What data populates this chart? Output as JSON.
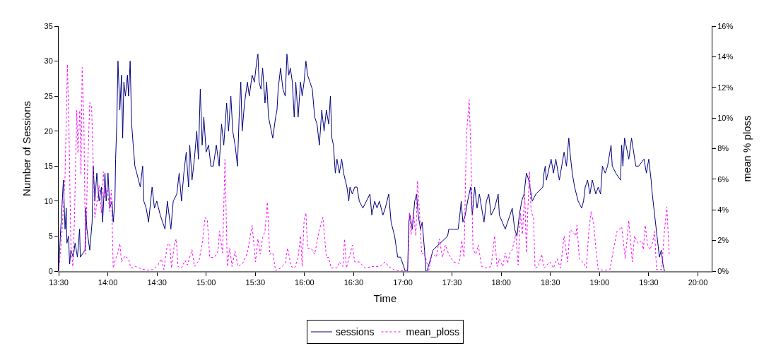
{
  "chart_data": {
    "type": "line",
    "xlabel": "Time",
    "ylabel": "Number of Sessions",
    "y2label": "mean % ploss",
    "xlim": [
      13.5,
      20.14
    ],
    "xticks": [
      {
        "value": 13.5,
        "label": "13:30"
      },
      {
        "value": 14,
        "label": "14:00"
      },
      {
        "value": 14.5,
        "label": "14:30"
      },
      {
        "value": 15,
        "label": "15:00"
      },
      {
        "value": 15.5,
        "label": "15:30"
      },
      {
        "value": 16,
        "label": "16:00"
      },
      {
        "value": 16.5,
        "label": "16:30"
      },
      {
        "value": 17,
        "label": "17:00"
      },
      {
        "value": 17.5,
        "label": "17:30"
      },
      {
        "value": 18,
        "label": "18:00"
      },
      {
        "value": 18.5,
        "label": "18:30"
      },
      {
        "value": 19,
        "label": "19:00"
      },
      {
        "value": 19.5,
        "label": "19:30"
      },
      {
        "value": 20,
        "label": "20:00"
      }
    ],
    "ylim": [
      0,
      35
    ],
    "yticks": [
      0,
      5,
      10,
      15,
      20,
      25,
      30,
      35
    ],
    "y2lim": [
      0,
      16
    ],
    "y2ticks": [
      {
        "value": 0,
        "label": "0%"
      },
      {
        "value": 2,
        "label": "2%"
      },
      {
        "value": 4,
        "label": "4%"
      },
      {
        "value": 6,
        "label": "6%"
      },
      {
        "value": 8,
        "label": "8%"
      },
      {
        "value": 10,
        "label": "10%"
      },
      {
        "value": 12,
        "label": "12%"
      },
      {
        "value": 14,
        "label": "14%"
      },
      {
        "value": 16,
        "label": "16%"
      }
    ],
    "grid": false,
    "legend": "bottom",
    "marker": "none",
    "series": [
      {
        "name": "sessions",
        "color": "#000080",
        "line_style": "solid",
        "x": [
          13.5,
          13.517,
          13.529,
          13.548,
          13.565,
          13.577,
          13.584,
          13.6,
          13.612,
          13.624,
          13.648,
          13.667,
          13.691,
          13.713,
          13.72,
          13.768,
          13.775,
          13.787,
          13.816,
          13.84,
          13.852,
          13.868,
          13.888,
          13.911,
          13.935,
          13.947,
          13.971,
          13.983,
          14.002,
          14.019,
          14.043,
          14.055,
          14.072,
          14.079,
          14.091,
          14.103,
          14.122,
          14.139,
          14.151,
          14.163,
          14.179,
          14.199,
          14.211,
          14.227,
          14.242,
          14.258,
          14.275,
          14.294,
          14.33,
          14.354,
          14.366,
          14.39,
          14.414,
          14.45,
          14.474,
          14.498,
          14.533,
          14.581,
          14.605,
          14.641,
          14.665,
          14.701,
          14.725,
          14.749,
          14.773,
          14.797,
          14.821,
          14.833,
          14.856,
          14.88,
          14.904,
          14.921,
          14.94,
          14.959,
          14.976,
          15.0,
          15.024,
          15.048,
          15.072,
          15.103,
          15.132,
          15.156,
          15.179,
          15.208,
          15.227,
          15.251,
          15.27,
          15.294,
          15.318,
          15.335,
          15.352,
          15.366,
          15.39,
          15.419,
          15.438,
          15.467,
          15.49,
          15.514,
          15.526,
          15.538,
          15.557,
          15.574,
          15.598,
          15.615,
          15.634,
          15.677,
          15.706,
          15.72,
          15.732,
          15.756,
          15.78,
          15.804,
          15.821,
          15.84,
          15.856,
          15.876,
          15.895,
          15.911,
          15.935,
          15.959,
          15.976,
          15.995,
          16.014,
          16.031,
          16.055,
          16.079,
          16.103,
          16.127,
          16.151,
          16.175,
          16.199,
          16.222,
          16.246,
          16.263,
          16.278,
          16.294,
          16.313,
          16.33,
          16.354,
          16.378,
          16.397,
          16.414,
          16.431,
          16.45,
          16.462,
          16.486,
          16.51,
          16.533,
          16.557,
          16.593,
          16.665,
          16.684,
          16.713,
          16.737,
          16.761,
          16.797,
          16.821,
          16.856,
          16.88,
          16.916,
          16.947,
          16.976,
          17.024,
          17.048,
          17.06,
          17.072,
          17.096,
          17.12,
          17.139,
          17.156,
          17.179,
          17.196,
          17.22,
          17.234,
          17.244,
          17.287,
          17.306,
          17.455,
          17.467,
          17.562,
          17.579,
          17.593,
          17.61,
          17.634,
          17.658,
          17.689,
          17.706,
          17.73,
          17.754,
          17.778,
          17.801,
          17.825,
          17.849,
          17.873,
          17.897,
          17.933,
          17.969,
          17.981,
          18.041,
          18.089,
          18.112,
          18.136,
          18.16,
          18.184,
          18.208,
          18.232,
          18.256,
          18.28,
          18.316,
          18.352,
          18.423,
          18.435,
          18.447,
          18.459,
          18.507,
          18.531,
          18.555,
          18.591,
          18.615,
          18.639,
          18.663,
          18.687,
          18.699,
          18.722,
          18.746,
          18.782,
          18.818,
          18.837,
          18.854,
          18.878,
          18.902,
          18.926,
          18.962,
          18.986,
          19.01,
          19.029,
          19.057,
          19.081,
          19.117,
          19.129,
          19.165,
          19.213,
          19.225,
          19.237,
          19.254,
          19.297,
          19.325,
          19.368,
          19.397,
          19.452,
          19.476,
          19.5,
          19.524,
          19.536,
          19.56,
          19.584,
          19.608,
          19.627,
          19.644,
          19.66
        ],
        "values": [
          0,
          5,
          8,
          13,
          6,
          9,
          4,
          5,
          1,
          3,
          2,
          4,
          2,
          6,
          2,
          3,
          9,
          6,
          3,
          7,
          15,
          10,
          14,
          10,
          12,
          7,
          14,
          10,
          14,
          9,
          10,
          7,
          10,
          16,
          21,
          30,
          23,
          28,
          19,
          27,
          25,
          28,
          25,
          30,
          21,
          18,
          15,
          14,
          12,
          15,
          10,
          9,
          7,
          12,
          9,
          10,
          8,
          6,
          10,
          6,
          10,
          11,
          14,
          10,
          14,
          17,
          12,
          18,
          13,
          16,
          20,
          16,
          26,
          18,
          22,
          17,
          18,
          15,
          15,
          18,
          15,
          21,
          18,
          24,
          20,
          25,
          20,
          18,
          15,
          22,
          27,
          20,
          24,
          27,
          25,
          28,
          27,
          30,
          31,
          27,
          26,
          29,
          24,
          27,
          22,
          19,
          22,
          23,
          26,
          29,
          26,
          25,
          31,
          28,
          29,
          27,
          22,
          27,
          22,
          27,
          25,
          27,
          30,
          28,
          27,
          26,
          22,
          21,
          18,
          23,
          20,
          23,
          21,
          25,
          19,
          18,
          14,
          16,
          14,
          16,
          14,
          13,
          12,
          10,
          12,
          11,
          12,
          12,
          10,
          9,
          11,
          8,
          10,
          9,
          10,
          8,
          9,
          11,
          7,
          5,
          2,
          2,
          0,
          0,
          7,
          8,
          6,
          10,
          11,
          8,
          6,
          7,
          3,
          0,
          0,
          2,
          3,
          5,
          6,
          6,
          8,
          10,
          7,
          8,
          10,
          12,
          8,
          12,
          9,
          11,
          9,
          7,
          10,
          11,
          8,
          9,
          11,
          8,
          6,
          8,
          9,
          6,
          5,
          8,
          10,
          11,
          14,
          13,
          10,
          11,
          12,
          14,
          15,
          13,
          16,
          14,
          16,
          13,
          15,
          17,
          15,
          19,
          17,
          14,
          12,
          10,
          9,
          10,
          12,
          13,
          11,
          13,
          11,
          12,
          11,
          15,
          14,
          15,
          18,
          15,
          14,
          13,
          18,
          15,
          19,
          16,
          19,
          15,
          15,
          16,
          14,
          16,
          13,
          11,
          8,
          5,
          2,
          3,
          1,
          0
        ]
      },
      {
        "name": "mean_ploss",
        "color": "#ff00ff",
        "line_style": "dotted",
        "axis": "y2",
        "x": [
          13.5,
          13.529,
          13.565,
          13.589,
          13.605,
          13.624,
          13.644,
          13.66,
          13.684,
          13.696,
          13.715,
          13.727,
          13.739,
          13.756,
          13.773,
          13.792,
          13.816,
          13.835,
          13.852,
          13.868,
          13.888,
          13.911,
          13.935,
          13.955,
          13.971,
          13.995,
          14.019,
          14.036,
          14.055,
          14.079,
          14.098,
          14.122,
          14.139,
          14.175,
          14.211,
          14.234,
          14.282,
          14.342,
          14.402,
          14.462,
          14.51,
          14.545,
          14.569,
          14.605,
          14.629,
          14.648,
          14.677,
          14.696,
          14.713,
          14.749,
          14.785,
          14.809,
          14.856,
          14.88,
          14.928,
          14.964,
          14.988,
          15.012,
          15.036,
          15.084,
          15.12,
          15.136,
          15.167,
          15.191,
          15.215,
          15.239,
          15.263,
          15.294,
          15.323,
          15.371,
          15.419,
          15.467,
          15.502,
          15.526,
          15.55,
          15.574,
          15.598,
          15.622,
          15.646,
          15.677,
          15.706,
          15.756,
          15.804,
          15.828,
          15.864,
          15.9,
          15.935,
          15.959,
          15.976,
          15.995,
          16.014,
          16.031,
          16.067,
          16.103,
          16.151,
          16.187,
          16.222,
          16.246,
          16.27,
          16.33,
          16.354,
          16.39,
          16.407,
          16.426,
          16.462,
          16.486,
          16.51,
          16.557,
          16.617,
          16.689,
          16.761,
          16.821,
          16.856,
          16.916,
          16.976,
          17.024,
          17.053,
          17.067,
          17.084,
          17.108,
          17.132,
          17.148,
          17.167,
          17.191,
          17.215,
          17.234,
          17.263,
          17.299,
          17.34,
          17.371,
          17.402,
          17.431,
          17.467,
          17.514,
          17.574,
          17.598,
          17.622,
          17.646,
          17.675,
          17.694,
          17.713,
          17.742,
          17.766,
          17.801,
          17.849,
          17.897,
          17.933,
          17.957,
          17.981,
          18.017,
          18.041,
          18.065,
          18.089,
          18.112,
          18.148,
          18.172,
          18.196,
          18.215,
          18.239,
          18.256,
          18.268,
          18.287,
          18.304,
          18.328,
          18.344,
          18.376,
          18.411,
          18.435,
          18.495,
          18.531,
          18.567,
          18.603,
          18.639,
          18.675,
          18.699,
          18.722,
          18.758,
          18.77,
          18.794,
          18.842,
          18.866,
          18.89,
          18.914,
          18.938,
          18.962,
          18.986,
          19.057,
          19.105,
          19.141,
          19.177,
          19.225,
          19.261,
          19.297,
          19.333,
          19.356,
          19.392,
          19.428,
          19.445,
          19.464,
          19.488,
          19.512,
          19.536,
          19.56,
          19.579,
          19.632,
          19.656,
          19.684,
          19.708
        ],
        "values": [
          0,
          2.0,
          6.2,
          13.5,
          9.2,
          1.7,
          0.3,
          3.2,
          10.5,
          7.7,
          10.5,
          6.3,
          13.3,
          9.9,
          1.1,
          6.2,
          11.0,
          10.7,
          6.9,
          3.5,
          4.4,
          5.6,
          3.8,
          6.5,
          4.8,
          5.4,
          3.9,
          5.3,
          0.2,
          0.8,
          1.1,
          1.8,
          0.6,
          1.0,
          0.8,
          0.2,
          0.3,
          0.15,
          0.06,
          0.1,
          0.4,
          0.8,
          0.1,
          1.7,
          1.8,
          0.2,
          1.8,
          2.1,
          0.3,
          0.2,
          0.7,
          0.4,
          1.4,
          0.3,
          0.7,
          2.0,
          3.5,
          3.3,
          0.9,
          0.9,
          1.3,
          2.6,
          1.2,
          7.3,
          0.3,
          1.5,
          0.3,
          1.3,
          0.3,
          0.5,
          1.2,
          3.0,
          0.6,
          2.1,
          1.1,
          2.2,
          2.6,
          4.5,
          1.1,
          1.2,
          0.03,
          0.2,
          0.5,
          1.5,
          0.3,
          0.2,
          0.9,
          2.3,
          0.3,
          3.3,
          3.8,
          1.5,
          1.5,
          1.1,
          2.7,
          3.5,
          0.9,
          0.9,
          0.2,
          0.2,
          0.6,
          0.3,
          2.1,
          0.2,
          1.1,
          1.7,
          0.6,
          0.6,
          0.2,
          0.3,
          0.3,
          0.6,
          0.3,
          0.06,
          0.03,
          0,
          0.3,
          3.8,
          2.4,
          3.8,
          2.3,
          5.9,
          4.1,
          1.1,
          1.2,
          0.8,
          0.03,
          1.2,
          0.9,
          2.1,
          0.9,
          1.7,
          1.1,
          0.6,
          0.5,
          2.0,
          0.9,
          8.9,
          11.2,
          7.1,
          1.4,
          1.1,
          1.7,
          0.3,
          0.2,
          0.3,
          2.3,
          0.3,
          0.8,
          0.3,
          1.2,
          0.5,
          1.2,
          1.4,
          2.4,
          0.4,
          3.8,
          2.4,
          5.0,
          1.2,
          3.6,
          6.5,
          3.9,
          3.5,
          0.2,
          0.3,
          1.1,
          0.2,
          0.6,
          0.2,
          0.8,
          0.2,
          2.3,
          0.6,
          2.7,
          2.6,
          2.3,
          3.0,
          0.8,
          0.5,
          0.2,
          2.6,
          3.9,
          3.2,
          1.5,
          0.1,
          0.06,
          0.1,
          1.4,
          2.6,
          2.9,
          0.8,
          3.3,
          0.6,
          2.3,
          1.8,
          2.0,
          1.4,
          3.0,
          1.7,
          1.4,
          1.8,
          2.6,
          0.1,
          0.1,
          2.4,
          4.2,
          1.1
        ]
      }
    ]
  }
}
